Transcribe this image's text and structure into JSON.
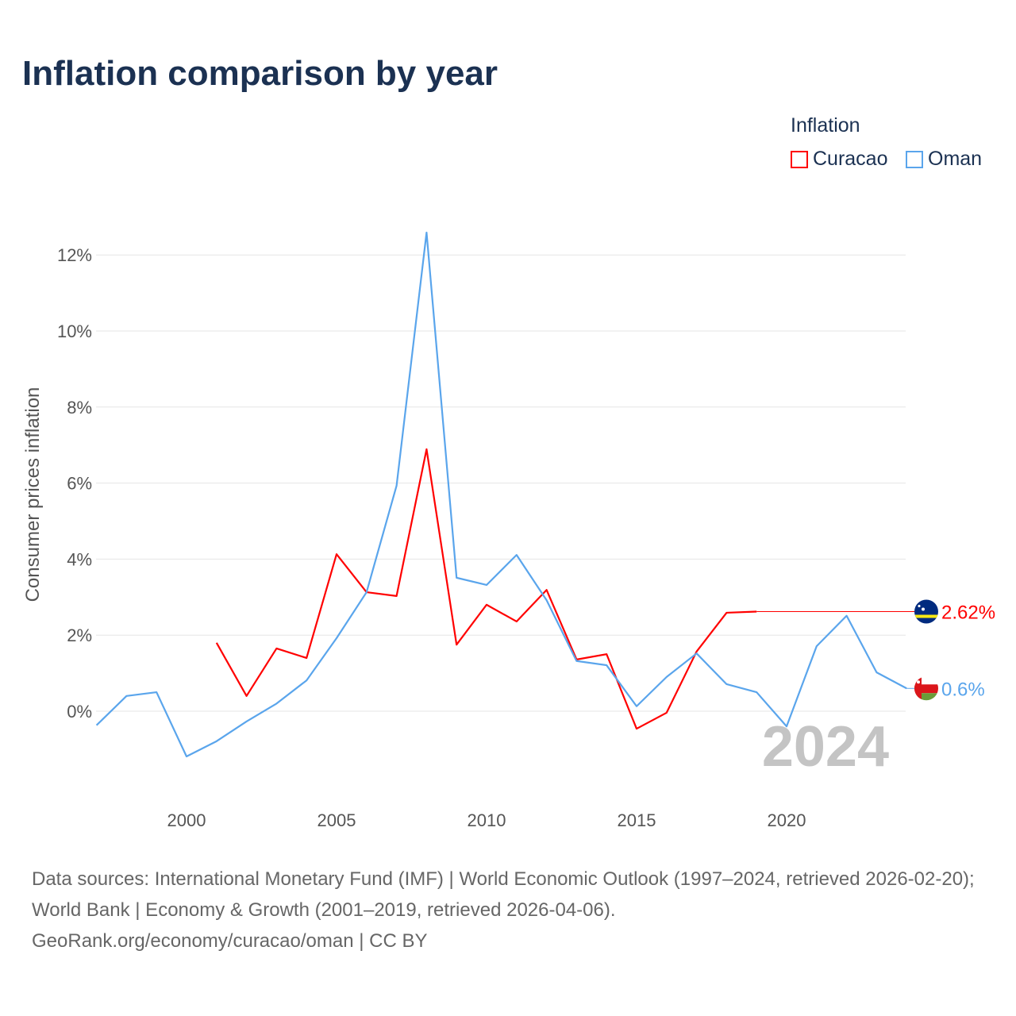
{
  "chart_data": {
    "type": "line",
    "title": "Inflation comparison by year",
    "xlabel": "",
    "ylabel": "Consumer prices inflation",
    "legend_title": "Inflation",
    "legend_placement": "top-right",
    "xlim": [
      1997,
      2024
    ],
    "ylim": [
      -2.5,
      13
    ],
    "grid": true,
    "x_ticks": [
      "2000",
      "2005",
      "2010",
      "2015",
      "2020"
    ],
    "y_ticks": [
      "0%",
      "2%",
      "4%",
      "6%",
      "8%",
      "10%",
      "12%"
    ],
    "year_label": "2024",
    "series": [
      {
        "name": "Curacao",
        "color": "#ff0000",
        "end_label": "2.62%",
        "end_value": 2.62,
        "x": [
          2001,
          2002,
          2003,
          2004,
          2005,
          2006,
          2007,
          2008,
          2009,
          2010,
          2011,
          2012,
          2013,
          2014,
          2015,
          2016,
          2017,
          2018,
          2019
        ],
        "values": [
          1.8,
          0.4,
          1.65,
          1.4,
          4.13,
          3.13,
          3.03,
          6.89,
          1.75,
          2.8,
          2.36,
          3.19,
          1.36,
          1.5,
          -0.46,
          -0.04,
          1.57,
          2.59,
          2.62
        ]
      },
      {
        "name": "Oman",
        "color": "#5aa5ec",
        "end_label": "0.6%",
        "end_value": 0.6,
        "x": [
          1997,
          1998,
          1999,
          2000,
          2001,
          2002,
          2003,
          2004,
          2005,
          2006,
          2007,
          2008,
          2009,
          2010,
          2011,
          2012,
          2013,
          2014,
          2015,
          2016,
          2017,
          2018,
          2019,
          2020,
          2021,
          2022,
          2023,
          2024
        ],
        "values": [
          -0.37,
          0.4,
          0.5,
          -1.19,
          -0.79,
          -0.27,
          0.2,
          0.81,
          1.92,
          3.13,
          5.93,
          12.59,
          3.51,
          3.32,
          4.11,
          2.92,
          1.32,
          1.21,
          0.13,
          0.9,
          1.52,
          0.71,
          0.5,
          -0.4,
          1.71,
          2.51,
          1.02,
          0.6
        ]
      }
    ]
  },
  "source_text": "Data sources: International Monetary Fund (IMF) | World Economic Outlook (1997–2024, retrieved 2026-02-20); World Bank | Economy & Growth (2001–2019, retrieved 2026-04-06).",
  "source_link": "GeoRank.org/economy/curacao/oman | CC BY"
}
